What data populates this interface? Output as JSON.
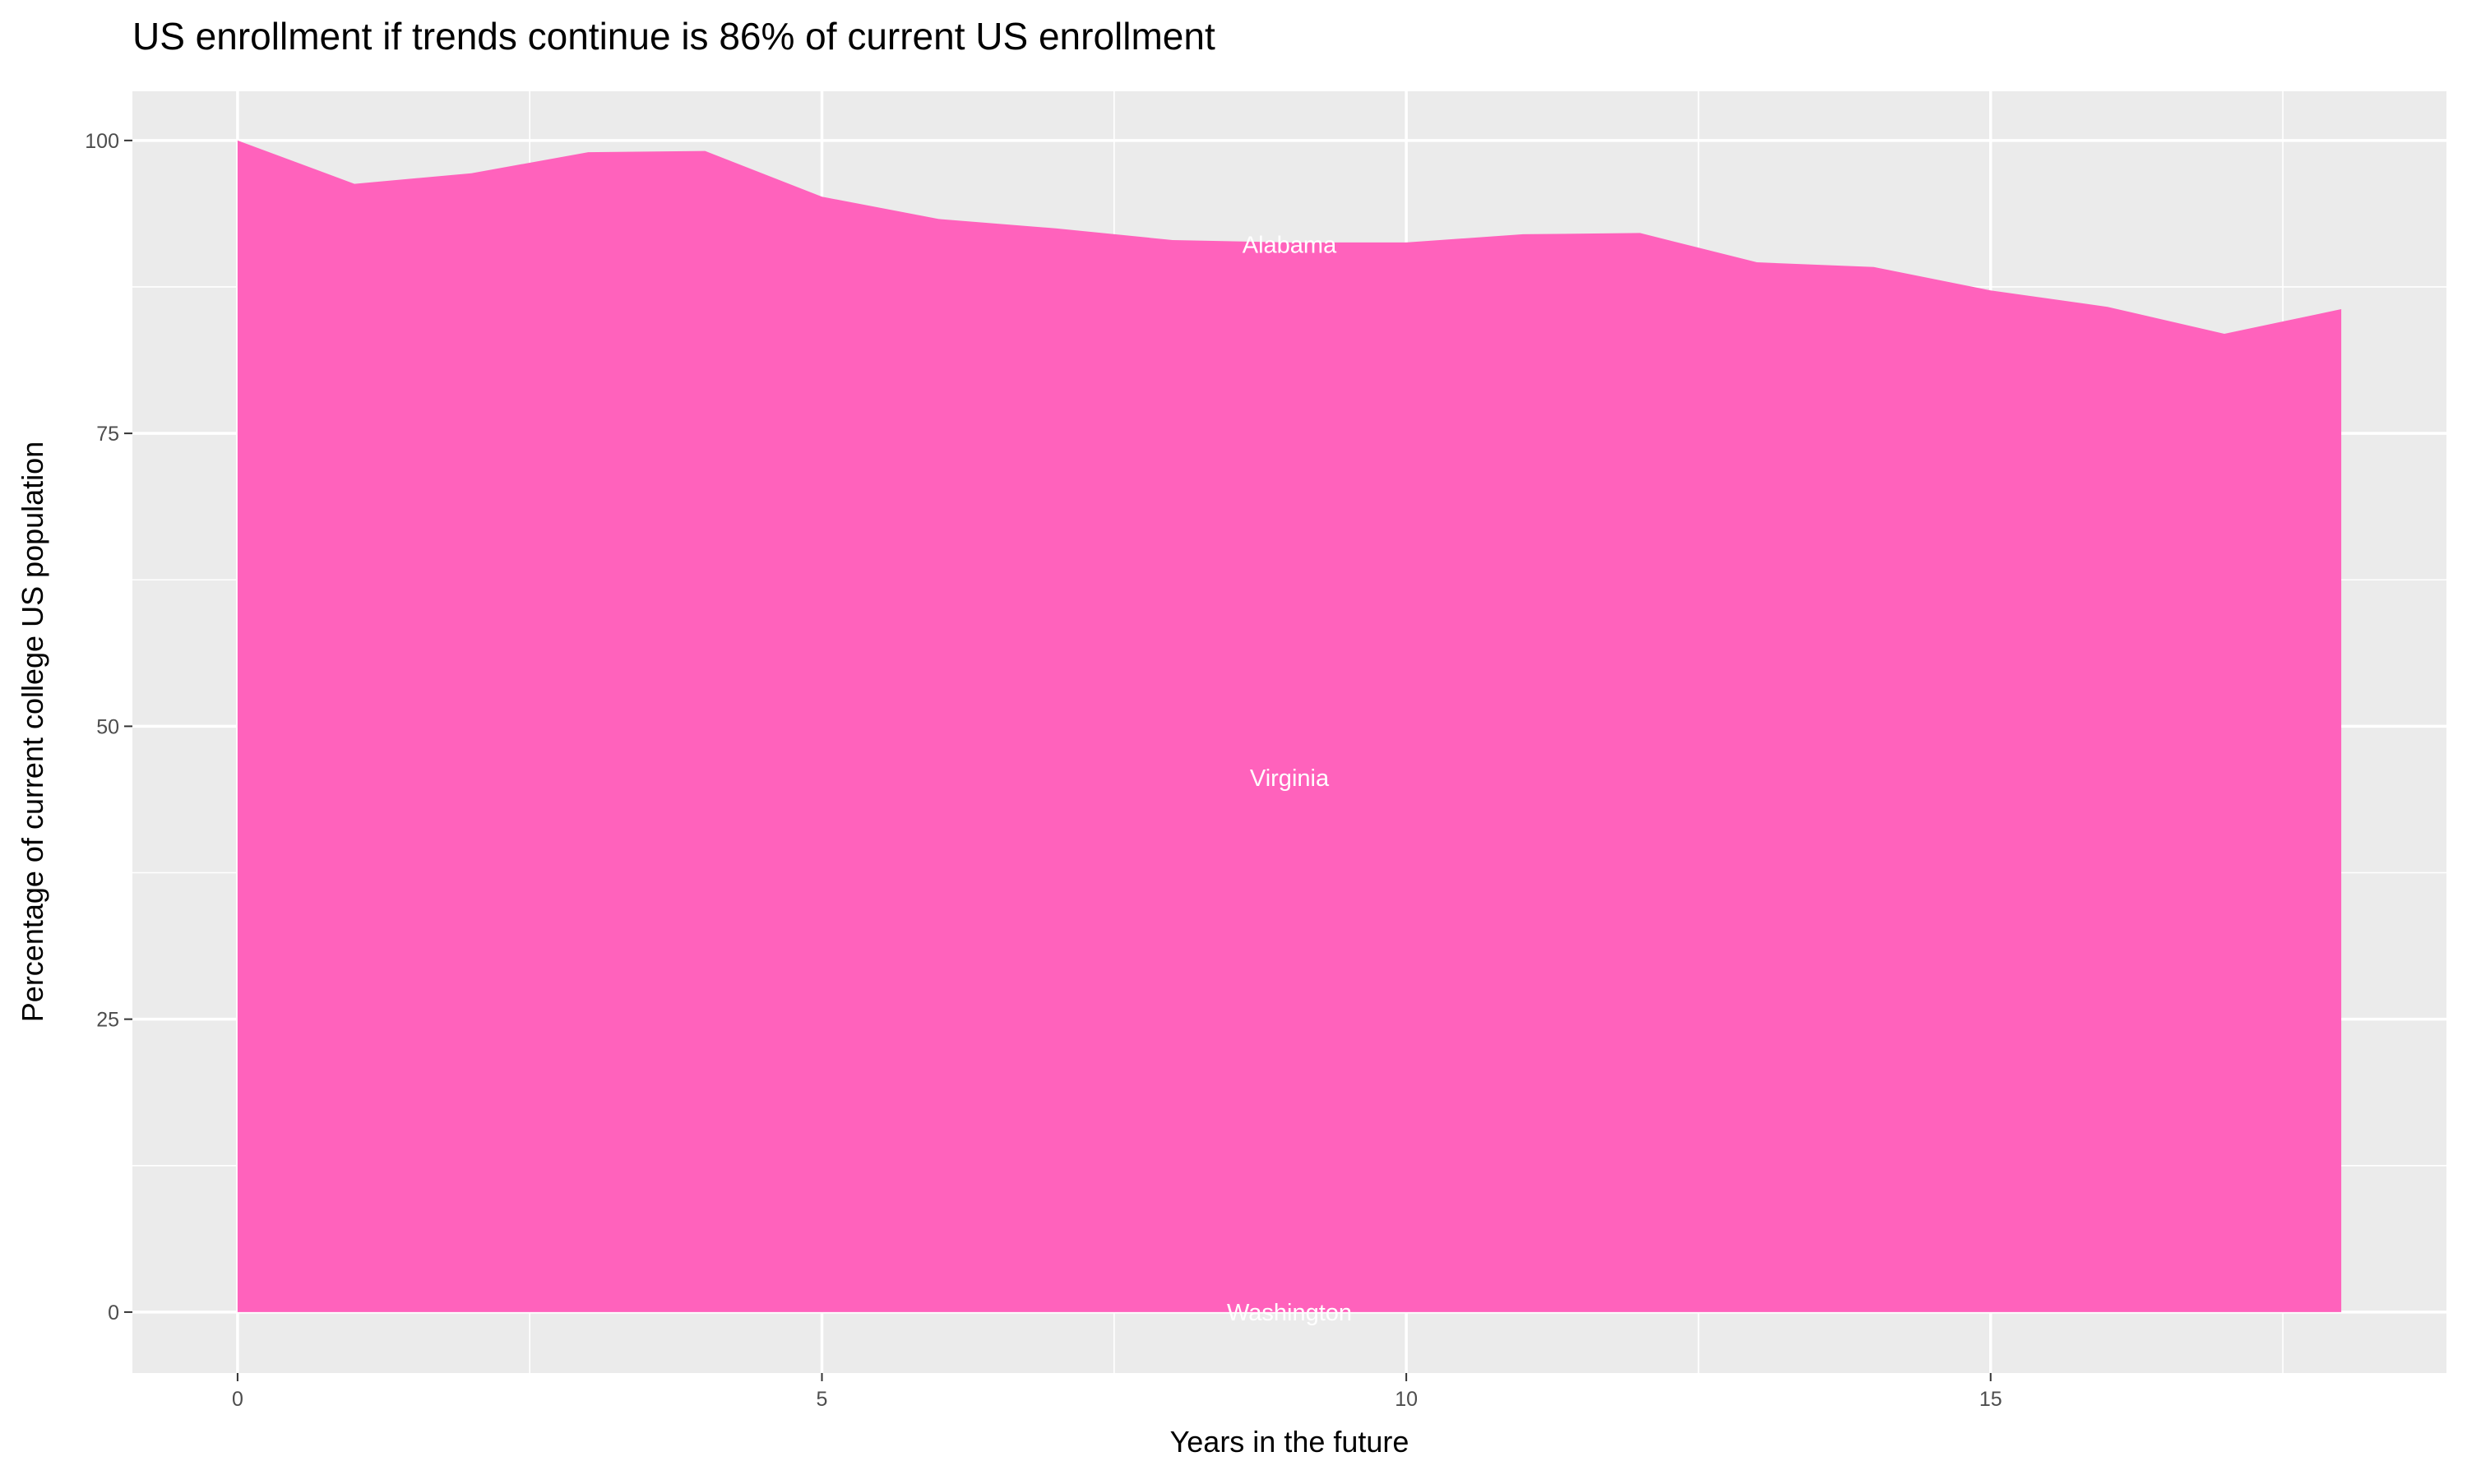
{
  "chart_data": {
    "type": "area",
    "title": "US enrollment if trends continue is 86% of current US enrollment",
    "xlabel": "Years in the future",
    "ylabel": "Percentage of current college US population",
    "xlim": [
      -0.9,
      18.9
    ],
    "ylim": [
      -5.2,
      104.2
    ],
    "x_ticks": [
      0,
      5,
      10,
      15
    ],
    "y_ticks": [
      0,
      25,
      50,
      75,
      100
    ],
    "grid": true,
    "fill_color": "#FF62BC",
    "panel_color": "#EBEBEB",
    "x": [
      0,
      1,
      2,
      3,
      4,
      5,
      6,
      7,
      8,
      9,
      10,
      11,
      12,
      13,
      14,
      15,
      16,
      17,
      18
    ],
    "values": [
      100,
      96.3,
      97.2,
      99.0,
      99.1,
      95.2,
      93.3,
      92.5,
      91.5,
      91.3,
      91.3,
      92.0,
      92.1,
      89.6,
      89.2,
      87.2,
      85.8,
      83.5,
      85.6
    ],
    "annotations": [
      {
        "text": "Alabama",
        "x": 9,
        "y": 91.1
      },
      {
        "text": "Virginia",
        "x": 9,
        "y": 45.6
      },
      {
        "text": "Washington",
        "x": 9,
        "y": 0
      }
    ]
  }
}
